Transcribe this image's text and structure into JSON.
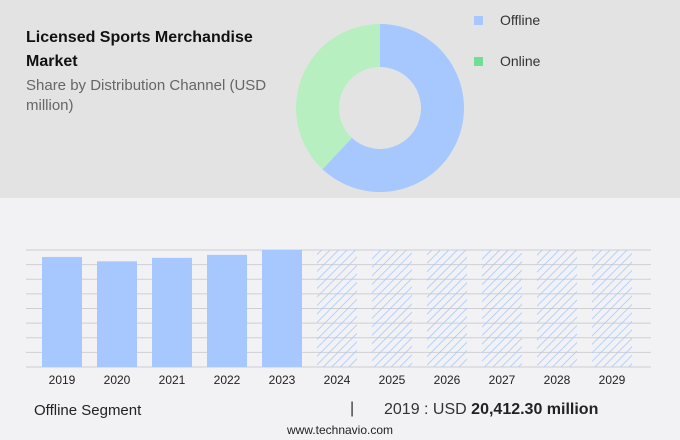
{
  "header": {
    "title": "Licensed Sports Merchandise Market",
    "subtitle": "Share by Distribution Channel (USD million)"
  },
  "legend": [
    {
      "label": "Offline",
      "color": "#a6c8ff"
    },
    {
      "label": "Online",
      "color": "#6fe08f"
    }
  ],
  "footer": {
    "segment_label": "Offline Segment",
    "separator": "|",
    "value_prefix": "2019 : USD",
    "value": "20,412.30 million",
    "site": "www.technavio.com"
  },
  "chart_data": [
    {
      "type": "pie",
      "subtype": "donut",
      "title": "Share by Distribution Channel (USD million)",
      "categories": [
        "Offline",
        "Online"
      ],
      "values": [
        62,
        38
      ],
      "colors": [
        "#a6c8ff",
        "#b8efc0"
      ],
      "legend_position": "right"
    },
    {
      "type": "bar",
      "title": "Offline Segment",
      "categories": [
        "2019",
        "2020",
        "2021",
        "2022",
        "2023",
        "2024",
        "2025",
        "2026",
        "2027",
        "2028",
        "2029"
      ],
      "values": [
        20412.3,
        19600,
        20250,
        20800,
        21700,
        null,
        null,
        null,
        null,
        null,
        null
      ],
      "forecast_years": [
        "2024",
        "2025",
        "2026",
        "2027",
        "2028",
        "2029"
      ],
      "forecast_style": "hatched",
      "xlabel": "",
      "ylabel": "",
      "grid": true,
      "annotation": "2019 : USD 20,412.30 million"
    }
  ]
}
